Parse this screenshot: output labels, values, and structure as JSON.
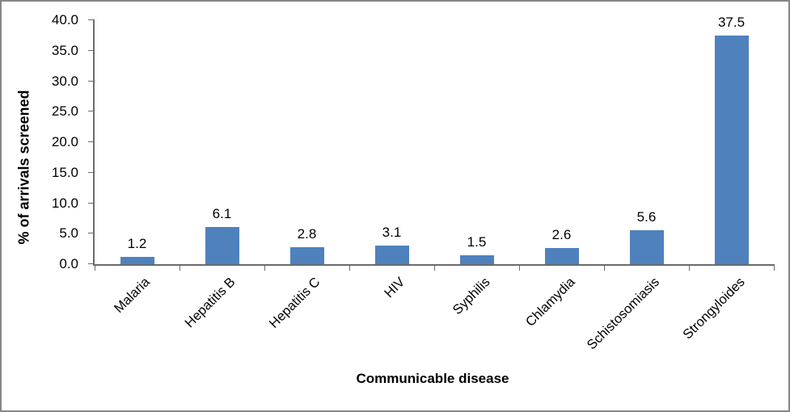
{
  "chart_data": {
    "type": "bar",
    "title": "",
    "categories": [
      "Malaria",
      "Hepatitis B",
      "Hepatitis C",
      "HIV",
      "Syphilis",
      "Chlamydia",
      "Schistosomiasis",
      "Strongyloides"
    ],
    "values": [
      1.2,
      6.1,
      2.8,
      3.1,
      1.5,
      2.6,
      5.6,
      37.5
    ],
    "data_labels": [
      "1.2",
      "6.1",
      "2.8",
      "3.1",
      "1.5",
      "2.6",
      "5.6",
      "37.5"
    ],
    "xlabel": "Communicable disease",
    "ylabel": "% of arrivals screened",
    "ylim": [
      0,
      40
    ],
    "yticks": [
      0,
      5,
      10,
      15,
      20,
      25,
      30,
      35,
      40
    ],
    "ytick_labels": [
      "0.0",
      "5.0",
      "10.0",
      "15.0",
      "20.0",
      "25.0",
      "30.0",
      "35.0",
      "40.0"
    ],
    "bar_color": "#4F81BD",
    "axis_color": "#6b6b6b",
    "grid": false,
    "legend_position": "none"
  }
}
